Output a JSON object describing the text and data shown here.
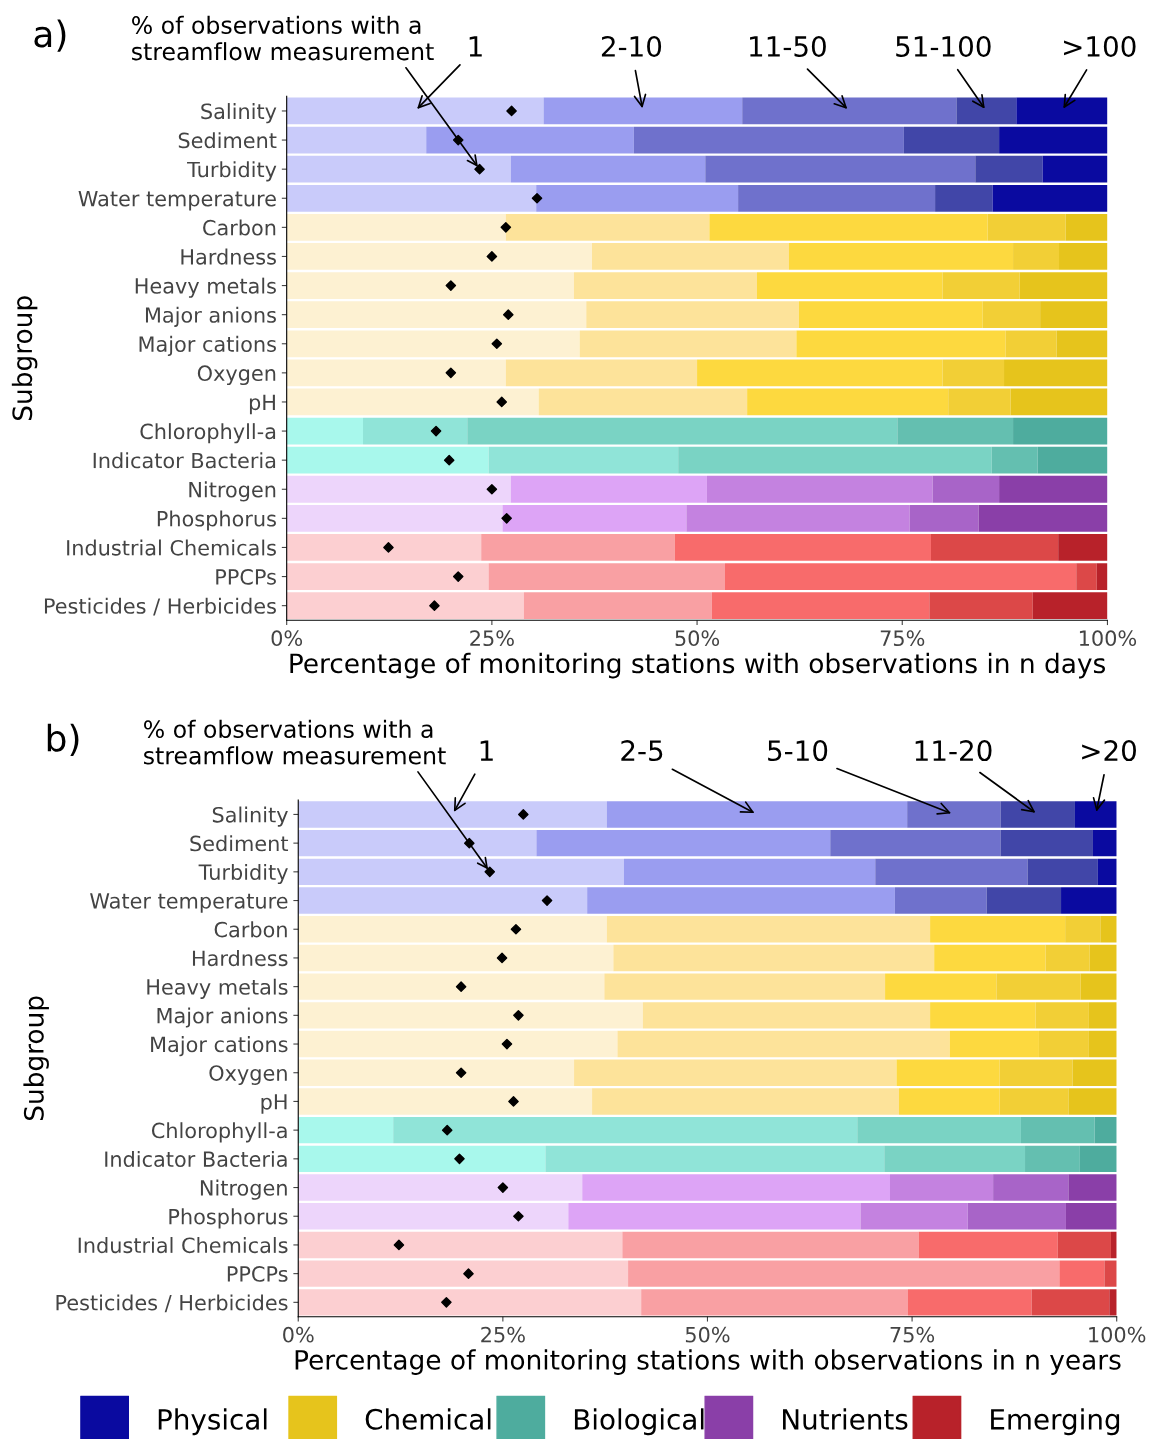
{
  "chart_data": [
    {
      "type": "bar",
      "title": "a)",
      "orientation": "horizontal",
      "stacked": true,
      "xlabel": "Percentage of monitoring stations with observations in n days",
      "ylabel": "Subgroup",
      "xlim": [
        0,
        100
      ],
      "xticks": [
        {
          "value": 0,
          "label": "0%"
        },
        {
          "value": 25,
          "label": "25%"
        },
        {
          "value": 50,
          "label": "50%"
        },
        {
          "value": 75,
          "label": "75%"
        },
        {
          "value": 100,
          "label": "100%"
        }
      ],
      "categories": [
        "Salinity",
        "Sediment",
        "Turbidity",
        "Water temperature",
        "Carbon",
        "Hardness",
        "Heavy metals",
        "Major anions",
        "Major cations",
        "Oxygen",
        "pH",
        "Chlorophyll-a",
        "Indicator Bacteria",
        "Nitrogen",
        "Phosphorus",
        "Industrial Chemicals",
        "PPCPs",
        "Pesticides / Herbicides"
      ],
      "series": [
        {
          "name": "1",
          "values": [
            31.3,
            17.0,
            27.3,
            30.4,
            26.7,
            37.2,
            35.0,
            36.5,
            35.7,
            26.7,
            30.7,
            9.3,
            24.6,
            27.3,
            26.3,
            23.7,
            24.6,
            28.9
          ],
          "colors": [
            "#c9cbfa",
            "#c9cbfa",
            "#c9cbfa",
            "#c9cbfa",
            "#fdf1d2",
            "#fdf1d2",
            "#fdf1d2",
            "#fdf1d2",
            "#fdf1d2",
            "#fdf1d2",
            "#fdf1d2",
            "#a8f8ec",
            "#a8f8ec",
            "#edd5fb",
            "#edd5fb",
            "#fccfd1",
            "#fccfd1",
            "#fccfd1"
          ]
        },
        {
          "name": "2-10",
          "values": [
            24.2,
            25.3,
            23.7,
            24.6,
            24.8,
            24.0,
            22.3,
            25.9,
            26.4,
            23.3,
            25.4,
            12.7,
            23.1,
            23.9,
            22.4,
            23.6,
            28.8,
            22.9
          ],
          "colors": [
            "#9a9df0",
            "#9a9df0",
            "#9a9df0",
            "#9a9df0",
            "#fde39a",
            "#fde39a",
            "#fde39a",
            "#fde39a",
            "#fde39a",
            "#fde39a",
            "#fde39a",
            "#90e4d8",
            "#90e4d8",
            "#dda4f6",
            "#dda4f6",
            "#f9a0a3",
            "#f9a0a3",
            "#f9a0a3"
          ]
        },
        {
          "name": "11-50",
          "values": [
            26.1,
            32.9,
            32.9,
            24.0,
            33.9,
            27.3,
            22.6,
            22.4,
            25.5,
            29.9,
            24.5,
            52.4,
            38.2,
            27.5,
            27.2,
            31.2,
            42.8,
            26.5
          ],
          "colors": [
            "#6f71cc",
            "#6f71cc",
            "#6f71cc",
            "#6f71cc",
            "#fdd93f",
            "#fdd93f",
            "#fdd93f",
            "#fdd93f",
            "#fdd93f",
            "#fdd93f",
            "#fdd93f",
            "#7ad3c4",
            "#7ad3c4",
            "#c482e0",
            "#c482e0",
            "#f86b6b",
            "#f86b6b",
            "#f86b6b"
          ]
        },
        {
          "name": "51-100",
          "values": [
            7.3,
            11.6,
            8.2,
            7.0,
            9.5,
            5.6,
            9.4,
            7.0,
            6.2,
            7.5,
            7.6,
            14.1,
            5.6,
            8.1,
            8.4,
            15.5,
            2.5,
            12.6
          ],
          "colors": [
            "#4146a8",
            "#4146a8",
            "#4146a8",
            "#4146a8",
            "#f2cf36",
            "#f2cf36",
            "#f2cf36",
            "#f2cf36",
            "#f2cf36",
            "#f2cf36",
            "#f2cf36",
            "#64bfb0",
            "#64bfb0",
            "#a864c8",
            "#a864c8",
            "#dc4848",
            "#dc4848",
            "#dc4848"
          ]
        },
        {
          "name": ">100",
          "values": [
            11.1,
            13.2,
            7.9,
            14.0,
            5.1,
            5.9,
            10.7,
            8.2,
            6.2,
            12.6,
            11.8,
            11.5,
            8.5,
            13.2,
            15.7,
            6.0,
            1.3,
            9.1
          ],
          "colors": [
            "#0a0aa0",
            "#0a0aa0",
            "#0a0aa0",
            "#0a0aa0",
            "#e6c41c",
            "#e6c41c",
            "#e6c41c",
            "#e6c41c",
            "#e6c41c",
            "#e6c41c",
            "#e6c41c",
            "#4eac9e",
            "#4eac9e",
            "#8a3fa8",
            "#8a3fa8",
            "#b8222a",
            "#b8222a",
            "#b8222a"
          ]
        },
        {
          "type": "scatter",
          "marker": "diamond",
          "color": "#000000",
          "values": [
            27.4,
            20.9,
            23.5,
            30.5,
            26.7,
            25.0,
            20.0,
            27.0,
            25.6,
            20.0,
            26.2,
            18.2,
            19.8,
            25.0,
            26.8,
            12.4,
            20.9,
            18.0
          ]
        }
      ],
      "annotations": [
        {
          "text": "% of observations with a\nstreamflow measurement",
          "x": 23.5,
          "y": "Turbidity"
        }
      ]
    },
    {
      "type": "bar",
      "title": "b)",
      "orientation": "horizontal",
      "stacked": true,
      "xlabel": "Percentage of monitoring stations with observations in n years",
      "ylabel": "Subgroup",
      "xlim": [
        0,
        100
      ],
      "xticks": [
        {
          "value": 0,
          "label": "0%"
        },
        {
          "value": 25,
          "label": "25%"
        },
        {
          "value": 50,
          "label": "50%"
        },
        {
          "value": 75,
          "label": "75%"
        },
        {
          "value": 100,
          "label": "100%"
        }
      ],
      "categories": [
        "Salinity",
        "Sediment",
        "Turbidity",
        "Water temperature",
        "Carbon",
        "Hardness",
        "Heavy metals",
        "Major anions",
        "Major cations",
        "Oxygen",
        "pH",
        "Chlorophyll-a",
        "Indicator Bacteria",
        "Nitrogen",
        "Phosphorus",
        "Industrial Chemicals",
        "PPCPs",
        "Pesticides / Herbicides"
      ],
      "series": [
        {
          "name": "1",
          "values": [
            37.7,
            29.1,
            39.8,
            35.3,
            37.7,
            38.5,
            37.4,
            42.1,
            39.0,
            33.7,
            35.9,
            11.6,
            30.2,
            34.7,
            33.0,
            39.6,
            40.3,
            41.9
          ],
          "colors": [
            "#c9cbfa",
            "#c9cbfa",
            "#c9cbfa",
            "#c9cbfa",
            "#fdf1d2",
            "#fdf1d2",
            "#fdf1d2",
            "#fdf1d2",
            "#fdf1d2",
            "#fdf1d2",
            "#fdf1d2",
            "#a8f8ec",
            "#a8f8ec",
            "#edd5fb",
            "#edd5fb",
            "#fccfd1",
            "#fccfd1",
            "#fccfd1"
          ]
        },
        {
          "name": "2-5",
          "values": [
            36.7,
            35.9,
            30.7,
            37.6,
            39.5,
            39.2,
            34.3,
            35.1,
            40.6,
            39.4,
            37.5,
            56.7,
            41.4,
            37.6,
            35.7,
            36.2,
            52.7,
            32.6
          ],
          "colors": [
            "#9a9df0",
            "#9a9df0",
            "#9a9df0",
            "#9a9df0",
            "#fde39a",
            "#fde39a",
            "#fde39a",
            "#fde39a",
            "#fde39a",
            "#fde39a",
            "#fde39a",
            "#90e4d8",
            "#90e4d8",
            "#dda4f6",
            "#dda4f6",
            "#f9a0a3",
            "#f9a0a3",
            "#f9a0a3"
          ]
        },
        {
          "name": "5-10",
          "values": [
            11.4,
            20.8,
            18.6,
            11.2,
            16.5,
            13.6,
            13.6,
            12.9,
            10.9,
            12.6,
            12.3,
            20.0,
            17.2,
            12.6,
            13.1,
            17.0,
            5.5,
            15.1
          ],
          "colors": [
            "#6f71cc",
            "#6f71cc",
            "#6f71cc",
            "#6f71cc",
            "#fdd93f",
            "#fdd93f",
            "#fdd93f",
            "#fdd93f",
            "#fdd93f",
            "#fdd93f",
            "#fdd93f",
            "#7ad3c4",
            "#7ad3c4",
            "#c482e0",
            "#c482e0",
            "#f86b6b",
            "#f86b6b",
            "#f86b6b"
          ]
        },
        {
          "name": "11-20",
          "values": [
            9.1,
            11.3,
            8.6,
            9.1,
            4.3,
            5.4,
            10.3,
            6.5,
            6.1,
            8.9,
            8.4,
            9.0,
            6.7,
            9.2,
            12.0,
            6.5,
            1.5,
            9.5
          ],
          "colors": [
            "#4146a8",
            "#4146a8",
            "#4146a8",
            "#4146a8",
            "#f2cf36",
            "#f2cf36",
            "#f2cf36",
            "#f2cf36",
            "#f2cf36",
            "#f2cf36",
            "#f2cf36",
            "#64bfb0",
            "#64bfb0",
            "#a864c8",
            "#a864c8",
            "#dc4848",
            "#dc4848",
            "#dc4848"
          ]
        },
        {
          "name": ">20",
          "values": [
            5.1,
            2.9,
            2.3,
            6.8,
            2.0,
            3.3,
            4.4,
            3.4,
            3.4,
            5.4,
            5.9,
            2.7,
            4.5,
            5.9,
            6.2,
            0.7,
            0,
            0.9
          ],
          "colors": [
            "#0a0aa0",
            "#0a0aa0",
            "#0a0aa0",
            "#0a0aa0",
            "#e6c41c",
            "#e6c41c",
            "#e6c41c",
            "#e6c41c",
            "#e6c41c",
            "#e6c41c",
            "#e6c41c",
            "#4eac9e",
            "#4eac9e",
            "#8a3fa8",
            "#8a3fa8",
            "#b8222a",
            "#b8222a",
            "#b8222a"
          ]
        },
        {
          "type": "scatter",
          "marker": "diamond",
          "color": "#000000",
          "values": [
            27.5,
            20.9,
            23.4,
            30.4,
            26.6,
            24.9,
            19.9,
            26.9,
            25.5,
            19.9,
            26.3,
            18.2,
            19.7,
            25.0,
            26.9,
            12.3,
            20.8,
            18.1
          ]
        }
      ],
      "annotations": [
        {
          "text": "% of observations with a\nstreamflow measurement",
          "x": 23.4,
          "y": "Turbidity"
        }
      ]
    },
    {
      "type": "other",
      "categories": [
        "Physical",
        "Chemical",
        "Biological",
        "Nutrients",
        "Emerging"
      ],
      "colors": [
        "#0a0aa0",
        "#e6c41c",
        "#4eac9e",
        "#8a3fa8",
        "#b8222a"
      ]
    }
  ]
}
